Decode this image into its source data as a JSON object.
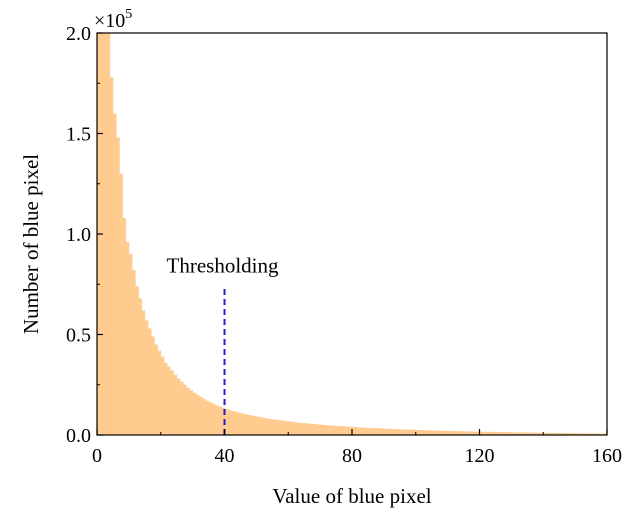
{
  "chart_data": {
    "type": "bar",
    "xlabel": "Value of blue pixel",
    "ylabel": "Number of blue pixel",
    "y_multiplier_label": "×10",
    "y_multiplier_exponent": "5",
    "xlim": [
      0,
      160
    ],
    "ylim": [
      0,
      2.0
    ],
    "x_ticks": [
      0,
      40,
      80,
      120,
      160
    ],
    "x_tick_labels": [
      "0",
      "40",
      "80",
      "120",
      "160"
    ],
    "y_ticks": [
      0,
      0.5,
      1.0,
      1.5,
      2.0
    ],
    "y_tick_labels": [
      "0.0",
      "0.5",
      "1.0",
      "1.5",
      "2.0"
    ],
    "bar_color": "#ffcb8e",
    "threshold": {
      "x": 40,
      "y_top": 0.73,
      "label": "Thresholding",
      "color": "#1f1fcf"
    },
    "grid": false,
    "x": [
      0,
      1,
      2,
      3,
      4,
      5,
      6,
      7,
      8,
      9,
      10,
      11,
      12,
      13,
      14,
      15,
      16,
      17,
      18,
      19,
      20,
      21,
      22,
      23,
      24,
      25,
      26,
      27,
      28,
      29,
      30,
      31,
      32,
      33,
      34,
      35,
      36,
      37,
      38,
      39,
      40,
      41,
      42,
      43,
      44,
      45,
      46,
      47,
      48,
      49,
      50,
      51,
      52,
      53,
      54,
      55,
      56,
      57,
      58,
      59,
      60,
      61,
      62,
      63,
      64,
      65,
      66,
      67,
      68,
      69,
      70,
      71,
      72,
      73,
      74,
      75,
      76,
      77,
      78,
      79,
      80,
      81,
      82,
      83,
      84,
      85,
      86,
      87,
      88,
      89,
      90,
      91,
      92,
      93,
      94,
      95,
      96,
      97,
      98,
      99,
      100,
      101,
      102,
      103,
      104,
      105,
      106,
      107,
      108,
      109,
      110,
      111,
      112,
      113,
      114,
      115,
      116,
      117,
      118,
      119,
      120,
      121,
      122,
      123,
      124,
      125,
      126,
      127,
      128,
      129,
      130,
      131,
      132,
      133,
      134,
      135,
      136,
      137,
      138,
      139,
      140,
      141,
      142,
      143,
      144,
      145,
      146,
      147,
      148,
      149,
      150,
      151,
      152,
      153,
      154,
      155,
      156,
      157,
      158,
      159
    ],
    "values": [
      2.0,
      2.0,
      2.0,
      2.0,
      1.78,
      1.6,
      1.48,
      1.3,
      1.08,
      0.96,
      0.9,
      0.82,
      0.74,
      0.68,
      0.62,
      0.57,
      0.53,
      0.49,
      0.45,
      0.42,
      0.39,
      0.36,
      0.34,
      0.32,
      0.3,
      0.28,
      0.265,
      0.25,
      0.235,
      0.222,
      0.21,
      0.2,
      0.19,
      0.18,
      0.171,
      0.163,
      0.155,
      0.148,
      0.142,
      0.136,
      0.13,
      0.125,
      0.12,
      0.116,
      0.112,
      0.108,
      0.104,
      0.1,
      0.097,
      0.094,
      0.091,
      0.088,
      0.085,
      0.082,
      0.079,
      0.077,
      0.075,
      0.073,
      0.071,
      0.069,
      0.067,
      0.065,
      0.063,
      0.061,
      0.06,
      0.058,
      0.057,
      0.055,
      0.054,
      0.052,
      0.051,
      0.05,
      0.048,
      0.047,
      0.046,
      0.045,
      0.044,
      0.043,
      0.042,
      0.041,
      0.04,
      0.039,
      0.038,
      0.037,
      0.036,
      0.035,
      0.034,
      0.034,
      0.033,
      0.032,
      0.031,
      0.031,
      0.03,
      0.029,
      0.029,
      0.028,
      0.027,
      0.027,
      0.026,
      0.026,
      0.025,
      0.025,
      0.024,
      0.024,
      0.023,
      0.023,
      0.022,
      0.022,
      0.021,
      0.021,
      0.02,
      0.02,
      0.02,
      0.019,
      0.019,
      0.018,
      0.018,
      0.018,
      0.017,
      0.017,
      0.017,
      0.016,
      0.016,
      0.016,
      0.015,
      0.015,
      0.015,
      0.014,
      0.014,
      0.014,
      0.013,
      0.013,
      0.013,
      0.013,
      0.012,
      0.012,
      0.012,
      0.012,
      0.011,
      0.011,
      0.011,
      0.011,
      0.01,
      0.01,
      0.01,
      0.01,
      0.01,
      0.009,
      0.009,
      0.009,
      0.009,
      0.009,
      0.008,
      0.008,
      0.008,
      0.008,
      0.008,
      0.007,
      0.007,
      0.007
    ]
  }
}
